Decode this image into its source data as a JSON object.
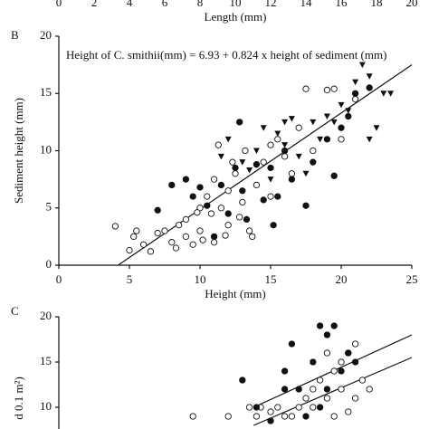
{
  "chart_data": [
    {
      "type": "axis",
      "xlabel": "Length (mm)",
      "xlim": [
        0,
        20
      ],
      "xticks": [
        0,
        2,
        4,
        6,
        8,
        10,
        12,
        14,
        16,
        18,
        20
      ]
    },
    {
      "type": "scatter",
      "panel_label": "B",
      "annotation": "Height of C. smithii(mm) = 6.93 + 0.824 x height of sediment (mm)",
      "xlabel": "Height (mm)",
      "ylabel": "Sediment height (mm)",
      "xlim": [
        0,
        25
      ],
      "ylim": [
        0,
        20
      ],
      "xticks": [
        0,
        5,
        10,
        15,
        20,
        25
      ],
      "yticks": [
        0,
        5,
        10,
        15,
        20
      ],
      "fit_lines": [
        {
          "x": [
            4.2,
            25
          ],
          "y": [
            0,
            17.5
          ]
        }
      ],
      "series": [
        {
          "marker": "open-circle",
          "color": "#111",
          "x": [
            4,
            5,
            5.3,
            5.5,
            6,
            6.5,
            7,
            7.5,
            8,
            8.3,
            8.5,
            9,
            9,
            9.5,
            10,
            10,
            10.2,
            10.5,
            10.8,
            11,
            11,
            11.3,
            11.5,
            12,
            12,
            12.5,
            12.8,
            13,
            13.2,
            13.5,
            13.7,
            14,
            14.5,
            15,
            15,
            15.5,
            16,
            16.5,
            17,
            17.5,
            18,
            19,
            19.5,
            20,
            21,
            11.8,
            12.3,
            9.8
          ],
          "values": [
            3.4,
            1.3,
            2.5,
            3,
            1.8,
            1.2,
            2.8,
            3,
            2,
            1.5,
            3.5,
            2.5,
            4,
            1.8,
            3,
            5,
            2.2,
            6,
            4.5,
            7.5,
            2,
            10.5,
            5,
            3.5,
            6.5,
            8,
            4.2,
            5.5,
            10,
            3,
            2.5,
            7,
            9,
            10.5,
            6,
            11,
            9.5,
            8,
            12,
            15.4,
            10,
            15.3,
            15.4,
            11,
            14.5,
            2.6,
            9,
            4.6
          ]
        },
        {
          "marker": "filled-circle",
          "color": "#111",
          "x": [
            7,
            8,
            9,
            9.5,
            10,
            10.5,
            11,
            11.5,
            12,
            12.5,
            13,
            14,
            14.5,
            15,
            15.5,
            16,
            16.5,
            17.5,
            18,
            19,
            19.5,
            20,
            20.5,
            21,
            22,
            15.2,
            13.3,
            12.8
          ],
          "values": [
            4.8,
            7,
            7.5,
            6,
            6.8,
            5.2,
            2.5,
            7,
            4.5,
            8.5,
            6.5,
            8.8,
            5.7,
            8.5,
            6,
            10,
            7.5,
            5.2,
            9,
            11,
            7.8,
            12,
            13,
            15,
            15.5,
            3.5,
            4,
            12.5
          ]
        },
        {
          "marker": "filled-triangle",
          "color": "#111",
          "x": [
            11.5,
            12,
            13,
            13.5,
            14,
            14.5,
            15,
            15.5,
            16,
            16.5,
            17,
            17.5,
            18,
            18.5,
            19,
            19.5,
            20,
            20.5,
            21,
            21.5,
            22,
            22.5,
            22,
            23,
            23.5,
            16
          ],
          "values": [
            9.5,
            11,
            9,
            8.3,
            10,
            12,
            7.5,
            11.5,
            12.5,
            12.8,
            9.5,
            8,
            12.5,
            11,
            13,
            12.5,
            14,
            13.5,
            16,
            17.5,
            16.5,
            12,
            11,
            15,
            15,
            10.5
          ]
        }
      ]
    },
    {
      "type": "scatter",
      "panel_label": "C",
      "ylabel": "d 0.1 m²)",
      "xlim": [
        0,
        25
      ],
      "ylim": [
        7.5,
        20
      ],
      "yticks": [
        10,
        15,
        20
      ],
      "fit_lines": [
        {
          "x": [
            13.8,
            25
          ],
          "y": [
            10,
            18
          ]
        },
        {
          "x": [
            13.8,
            25
          ],
          "y": [
            8,
            15.5
          ]
        }
      ],
      "series": [
        {
          "marker": "open-circle",
          "color": "#111",
          "x": [
            9.5,
            12,
            13.5,
            14,
            14.3,
            15,
            15.5,
            16,
            17,
            17.5,
            18,
            18.5,
            19,
            19.5,
            20,
            20.5,
            21,
            21.5,
            22,
            19,
            20,
            18,
            16.5,
            21,
            20.5,
            19.5
          ],
          "values": [
            9,
            9,
            10,
            9,
            10,
            9.5,
            10,
            9,
            10,
            11,
            12,
            13,
            11,
            14,
            15,
            16,
            17,
            13,
            12,
            16,
            12,
            10,
            9,
            11,
            9.5,
            9
          ]
        },
        {
          "marker": "filled-circle",
          "color": "#111",
          "x": [
            13,
            14,
            15,
            16,
            16.5,
            17,
            18,
            18.5,
            19,
            19.5,
            20,
            20.5,
            21,
            17.5,
            16,
            19,
            18.5
          ],
          "values": [
            13,
            10,
            8.5,
            12,
            17,
            12,
            15,
            19,
            18,
            19,
            14,
            16,
            15,
            9,
            14,
            12,
            10
          ]
        }
      ]
    }
  ]
}
